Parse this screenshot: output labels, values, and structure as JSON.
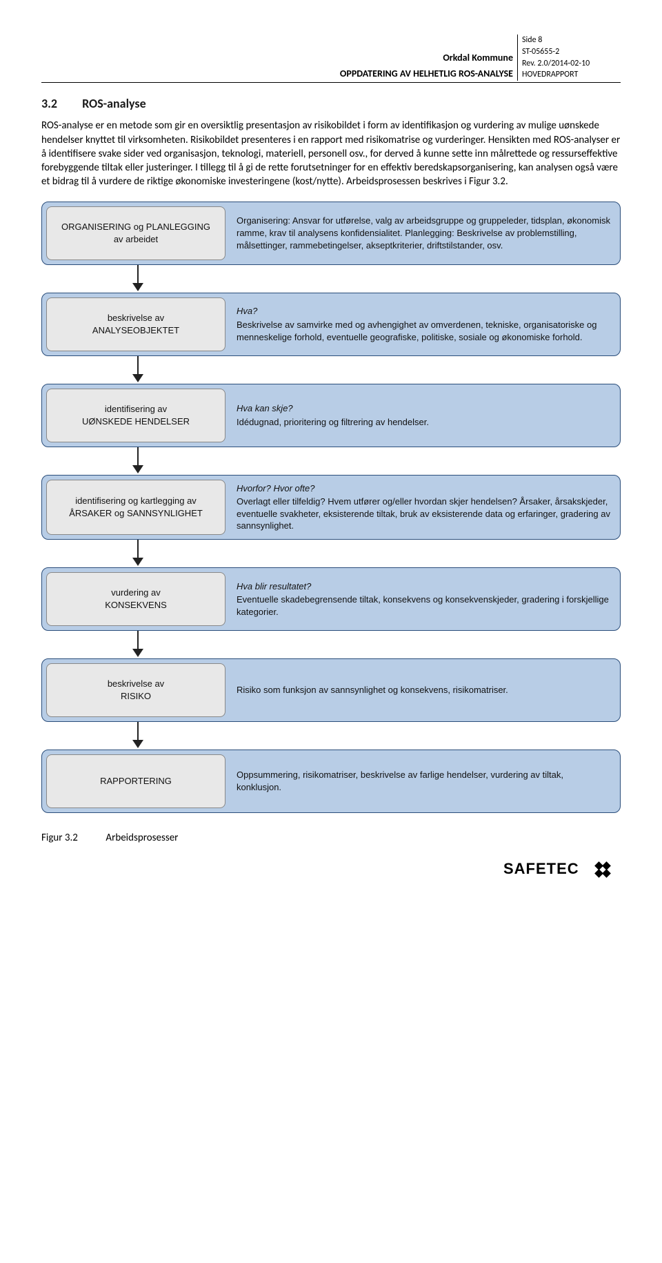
{
  "header": {
    "org": "Orkdal Kommune",
    "doc_title": "OPPDATERING AV HELHETLIG ROS-ANALYSE",
    "page": "Side 8",
    "ref": "ST-05655-2",
    "rev": "Rev. 2.0/2014-02-10",
    "type": "HOVEDRAPPORT"
  },
  "section": {
    "number": "3.2",
    "title": "ROS-analyse"
  },
  "body_text": "ROS-analyse er en metode som gir en oversiktlig presentasjon av risikobildet i form av identifikasjon og vurdering av mulige uønskede hendelser knyttet til virksomheten. Risikobildet presenteres i en rapport med risikomatrise og vurderinger. Hensikten med ROS-analyser er å identifisere svake sider ved organisasjon, teknologi, materiell, personell osv., for derved å kunne sette inn målrettede og ressurseffektive forebyggende tiltak eller justeringer. I tillegg til å gi de rette forutsetninger for en effektiv beredskapsorganisering, kan analysen også være et bidrag til å vurdere de riktige økonomiske investeringene (kost/nytte). Arbeidsprosessen beskrives i Figur 3.2.",
  "flow": {
    "colors": {
      "box_fill": "#b8cde6",
      "box_border": "#2a4d7a",
      "left_fill": "#e8e8e8",
      "left_border": "#888888",
      "arrow": "#222222"
    },
    "steps": [
      {
        "left_line1": "ORGANISERING og PLANLEGGING",
        "left_line2": "av arbeidet",
        "lead": "",
        "right": "Organisering: Ansvar for utførelse, valg av arbeidsgruppe og gruppeleder, tidsplan, økonomisk ramme, krav til analysens konfidensialitet. Planlegging: Beskrivelse av problemstilling, målsettinger, rammebetingelser, akseptkriterier, driftstilstander, osv."
      },
      {
        "left_line1": "beskrivelse av",
        "left_line2": "ANALYSEOBJEKTET",
        "lead": "Hva?",
        "right": "Beskrivelse av samvirke med og avhengighet av omverdenen, tekniske, organisatoriske og menneskelige forhold, eventuelle geografiske, politiske, sosiale og økonomiske forhold."
      },
      {
        "left_line1": "identifisering av",
        "left_line2": "UØNSKEDE HENDELSER",
        "lead": "Hva kan skje?",
        "right": "Idédugnad, prioritering og filtrering av hendelser."
      },
      {
        "left_line1": "identifisering og kartlegging av",
        "left_line2": "ÅRSAKER og SANNSYNLIGHET",
        "lead": "Hvorfor? Hvor ofte?",
        "right": "Overlagt eller tilfeldig? Hvem utfører og/eller hvordan skjer hendelsen? Årsaker, årsakskjeder, eventuelle svakheter, eksisterende tiltak, bruk av eksisterende data og erfaringer, gradering av sannsynlighet."
      },
      {
        "left_line1": "vurdering av",
        "left_line2": "KONSEKVENS",
        "lead": "Hva blir resultatet?",
        "right": "Eventuelle skadebegrensende tiltak, konsekvens og konsekvenskjeder, gradering i forskjellige kategorier."
      },
      {
        "left_line1": "beskrivelse av",
        "left_line2": "RISIKO",
        "lead": "",
        "right": "Risiko som funksjon av sannsynlighet og konsekvens, risikomatriser."
      },
      {
        "left_line1": "RAPPORTERING",
        "left_line2": "",
        "lead": "",
        "right": "Oppsummering, risikomatriser, beskrivelse av farlige hendelser, vurdering av tiltak, konklusjon."
      }
    ]
  },
  "caption": {
    "number": "Figur 3.2",
    "text": "Arbeidsprosesser"
  },
  "logo": {
    "text": "SAFETEC",
    "color": "#000000"
  }
}
